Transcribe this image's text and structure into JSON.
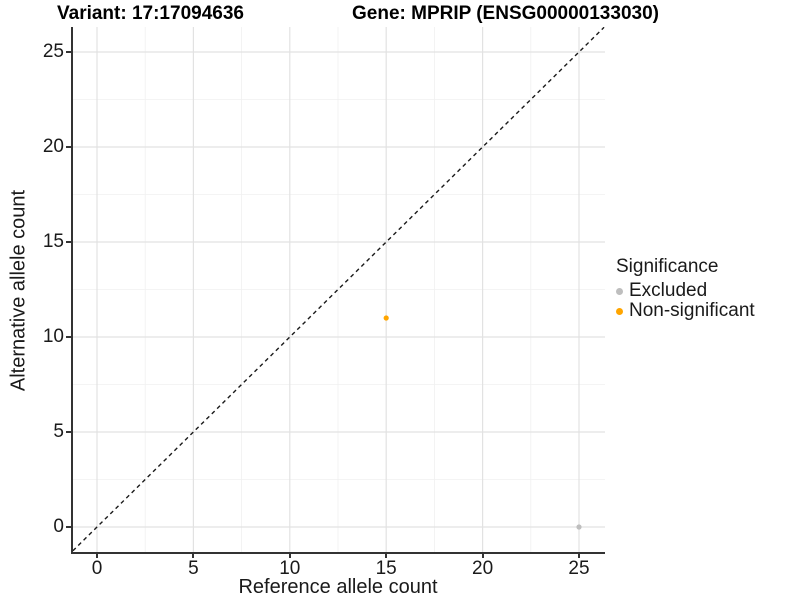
{
  "titles": {
    "variant": "Variant: 17:17094636",
    "gene": "Gene: MPRIP (ENSG00000133030)"
  },
  "axes": {
    "x": {
      "label": "Reference allele count",
      "ticks": [
        0,
        5,
        10,
        15,
        20,
        25
      ]
    },
    "y": {
      "label": "Alternative allele count",
      "ticks": [
        0,
        5,
        10,
        15,
        20,
        25
      ]
    }
  },
  "legend": {
    "title": "Significance",
    "items": [
      {
        "label": "Excluded",
        "color": "#BEBEBE"
      },
      {
        "label": "Non-significant",
        "color": "#FFA500"
      }
    ]
  },
  "colors": {
    "axis_line": "#333333",
    "major_grid": "#E2E2E2",
    "minor_grid": "#F0F0F0",
    "identity_line": "#1A1A1A",
    "excluded_point": "#BEBEBE",
    "non_significant_point": "#FFA500",
    "background": "#FFFFFF"
  },
  "chart_data": {
    "type": "scatter",
    "title": "Variant: 17:17094636 | Gene: MPRIP (ENSG00000133030)",
    "xlabel": "Reference allele count",
    "ylabel": "Alternative allele count",
    "xlim": [
      -1.25,
      26.35
    ],
    "ylim": [
      -1.3,
      26.3
    ],
    "xticks": [
      0,
      5,
      10,
      15,
      20,
      25
    ],
    "yticks": [
      0,
      5,
      10,
      15,
      20,
      25
    ],
    "grid": "major+minor",
    "legend_position": "right",
    "identity_line": {
      "style": "dashed",
      "color": "#1A1A1A"
    },
    "series": [
      {
        "name": "Excluded",
        "color": "#BEBEBE",
        "points": [
          [
            25,
            0
          ]
        ]
      },
      {
        "name": "Non-significant",
        "color": "#FFA500",
        "points": [
          [
            15,
            11
          ]
        ]
      }
    ]
  }
}
